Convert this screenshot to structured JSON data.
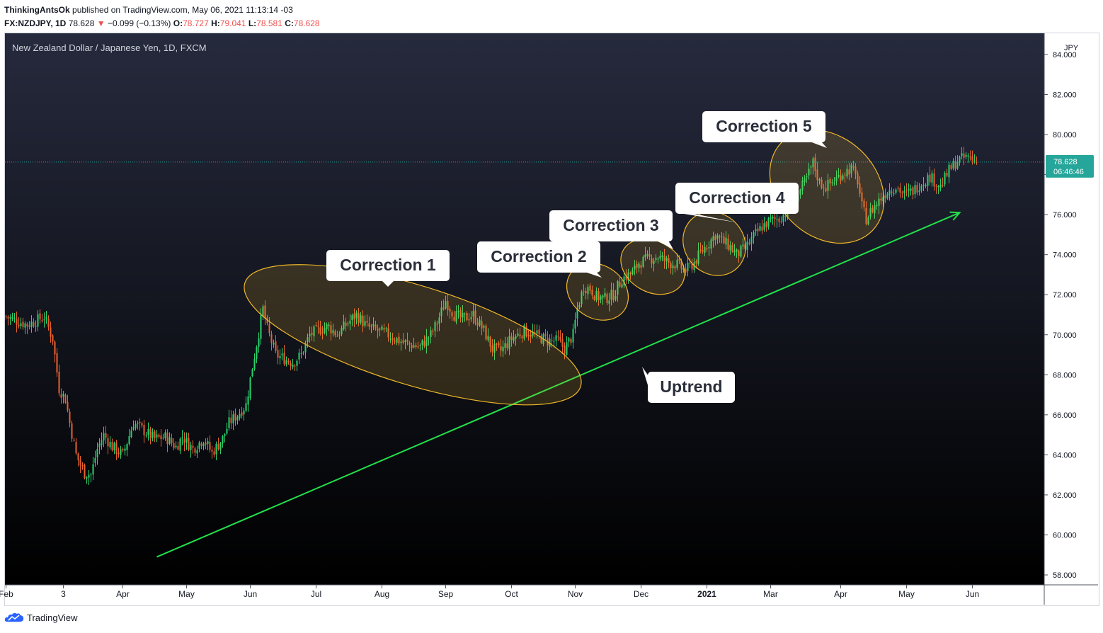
{
  "header": {
    "author": "ThinkingAntsOk",
    "published_text": "published on TradingView.com, May 06, 2021 11:13:14 -03",
    "symbol": "FX:NZDJPY, 1D",
    "last": "78.628",
    "change_arrow": "▼",
    "change": "−0.099 (−0.13%)",
    "o_label": "O:",
    "o_value": "78.727",
    "h_label": "H:",
    "h_value": "79.041",
    "l_label": "L:",
    "l_value": "78.581",
    "c_label": "C:",
    "c_value": "78.628"
  },
  "footer": {
    "brand": "TradingView"
  },
  "colors": {
    "up": "#26a69a",
    "down": "#ef5350",
    "candle_up": "#2bd26e",
    "candle_down": "#e8622f",
    "trend": "#21e14a",
    "ellipse_stroke": "#f0b829",
    "price_line": "#26a69a",
    "bg_top": "#262a3d",
    "bg_bottom": "#000000"
  },
  "chart_data": {
    "type": "candlestick",
    "title": "New Zealand Dollar / Japanese Yen, 1D, FXCM",
    "currency": "JPY",
    "ylim": [
      57.5,
      84.6
    ],
    "y_ticks": [
      "84.000",
      "82.000",
      "80.000",
      "78.000",
      "76.000",
      "74.000",
      "72.000",
      "70.000",
      "68.000",
      "66.000",
      "64.000",
      "62.000",
      "60.000",
      "58.000"
    ],
    "x_ticks": [
      "Feb",
      "3",
      "Apr",
      "May",
      "Jun",
      "Jul",
      "Aug",
      "Sep",
      "Oct",
      "Nov",
      "Dec",
      "2021",
      "Mar",
      "Apr",
      "May",
      "Jun"
    ],
    "x_tick_days": [
      0,
      27,
      55,
      85,
      115,
      146,
      177,
      207,
      238,
      268,
      299,
      330,
      360,
      393,
      424,
      455
    ],
    "last_price": "78.628",
    "countdown": "06:46:46",
    "close_path": [
      [
        0,
        70.9
      ],
      [
        10,
        70.5
      ],
      [
        18,
        70.9
      ],
      [
        22,
        69.8
      ],
      [
        25,
        67.3
      ],
      [
        28,
        66.8
      ],
      [
        30,
        65.6
      ],
      [
        33,
        64.0
      ],
      [
        35,
        63.5
      ],
      [
        37,
        63.1
      ],
      [
        40,
        63.0
      ],
      [
        43,
        64.3
      ],
      [
        46,
        65.0
      ],
      [
        50,
        64.4
      ],
      [
        55,
        64.0
      ],
      [
        60,
        65.6
      ],
      [
        65,
        65.2
      ],
      [
        70,
        64.8
      ],
      [
        75,
        64.9
      ],
      [
        80,
        64.4
      ],
      [
        83,
        64.9
      ],
      [
        88,
        64.3
      ],
      [
        93,
        64.8
      ],
      [
        97,
        64.1
      ],
      [
        102,
        64.8
      ],
      [
        105,
        65.6
      ],
      [
        109,
        66.0
      ],
      [
        113,
        66.5
      ],
      [
        116,
        68.4
      ],
      [
        119,
        70.1
      ],
      [
        121,
        71.3
      ],
      [
        123,
        70.3
      ],
      [
        127,
        69.0
      ],
      [
        131,
        68.8
      ],
      [
        135,
        68.6
      ],
      [
        139,
        69.0
      ],
      [
        143,
        70.0
      ],
      [
        148,
        70.3
      ],
      [
        152,
        70.4
      ],
      [
        156,
        70.0
      ],
      [
        160,
        70.5
      ],
      [
        165,
        71.0
      ],
      [
        170,
        70.4
      ],
      [
        175,
        70.2
      ],
      [
        180,
        70.0
      ],
      [
        185,
        69.7
      ],
      [
        190,
        69.5
      ],
      [
        195,
        69.4
      ],
      [
        200,
        70.0
      ],
      [
        203,
        70.6
      ],
      [
        207,
        71.7
      ],
      [
        211,
        71.0
      ],
      [
        215,
        70.8
      ],
      [
        220,
        71.0
      ],
      [
        225,
        70.2
      ],
      [
        229,
        69.3
      ],
      [
        233,
        69.2
      ],
      [
        238,
        69.8
      ],
      [
        244,
        70.2
      ],
      [
        249,
        70.0
      ],
      [
        255,
        69.7
      ],
      [
        260,
        69.7
      ],
      [
        263,
        69.3
      ],
      [
        267,
        70.0
      ],
      [
        269,
        71.3
      ],
      [
        272,
        72.4
      ],
      [
        275,
        72.3
      ],
      [
        278,
        71.9
      ],
      [
        282,
        71.8
      ],
      [
        286,
        72.0
      ],
      [
        290,
        72.8
      ],
      [
        295,
        73.1
      ],
      [
        298,
        73.6
      ],
      [
        303,
        73.8
      ],
      [
        307,
        73.9
      ],
      [
        312,
        73.6
      ],
      [
        316,
        73.5
      ],
      [
        320,
        73.2
      ],
      [
        324,
        73.6
      ],
      [
        327,
        74.1
      ],
      [
        331,
        74.6
      ],
      [
        334,
        75.0
      ],
      [
        337,
        74.7
      ],
      [
        341,
        74.4
      ],
      [
        344,
        74.0
      ],
      [
        348,
        74.3
      ],
      [
        352,
        74.9
      ],
      [
        356,
        75.4
      ],
      [
        360,
        75.7
      ],
      [
        364,
        75.8
      ],
      [
        367,
        76.1
      ],
      [
        370,
        76.6
      ],
      [
        374,
        77.2
      ],
      [
        377,
        77.8
      ],
      [
        380,
        78.6
      ],
      [
        383,
        77.6
      ],
      [
        386,
        77.4
      ],
      [
        390,
        77.7
      ],
      [
        394,
        78.1
      ],
      [
        398,
        78.3
      ],
      [
        401,
        77.7
      ],
      [
        403,
        76.4
      ],
      [
        405,
        75.8
      ],
      [
        408,
        76.3
      ],
      [
        411,
        76.7
      ],
      [
        415,
        77.2
      ],
      [
        419,
        77.4
      ],
      [
        423,
        77.0
      ],
      [
        427,
        77.2
      ],
      [
        431,
        77.6
      ],
      [
        435,
        77.9
      ],
      [
        440,
        77.4
      ],
      [
        444,
        78.2
      ],
      [
        448,
        78.7
      ],
      [
        453,
        78.9
      ],
      [
        457,
        78.63
      ]
    ],
    "annotations": [
      {
        "text": "Correction 1",
        "start_day": 115,
        "end_day": 268,
        "low": 67.5,
        "high": 72.5
      },
      {
        "text": "Correction 2",
        "start_day": 268,
        "end_day": 289,
        "low": 71.4,
        "high": 72.9
      },
      {
        "text": "Correction 3",
        "start_day": 293,
        "end_day": 316,
        "low": 72.7,
        "high": 74.1
      },
      {
        "text": "Correction 4",
        "start_day": 325,
        "end_day": 342,
        "low": 73.5,
        "high": 75.6
      },
      {
        "text": "Correction 5",
        "start_day": 367,
        "end_day": 406,
        "low": 75.4,
        "high": 79.4
      },
      {
        "text": "Uptrend"
      }
    ],
    "trendline": {
      "start": [
        71,
        58.9
      ],
      "end": [
        449,
        76.1
      ]
    },
    "grid": false
  }
}
